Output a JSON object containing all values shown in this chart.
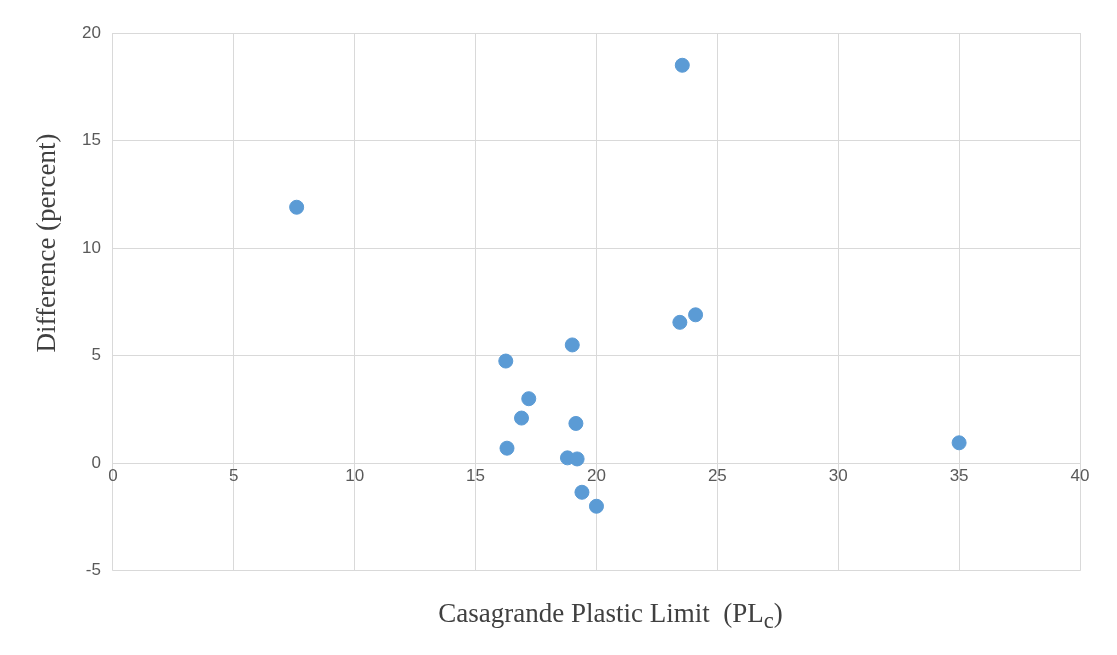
{
  "chart_data": {
    "type": "scatter",
    "xlabel": "Casagrande Plastic Limit  (PL$_{c}$)",
    "ylabel": "Difference (percent)",
    "xlim": [
      0,
      40
    ],
    "xticks": [
      0,
      5,
      10,
      15,
      20,
      25,
      30,
      35,
      40
    ],
    "ylim": [
      -5,
      20
    ],
    "yticks": [
      -5,
      0,
      5,
      10,
      15,
      20
    ],
    "grid": true,
    "marker": "circle",
    "series": [
      {
        "color": "#5b9bd5",
        "x": [
          7.6,
          23.55,
          16.25,
          19.0,
          23.45,
          24.1,
          17.2,
          16.9,
          19.15,
          16.3,
          18.8,
          19.2,
          19.4,
          20.0,
          35.0
        ],
        "values": [
          11.9,
          18.5,
          4.75,
          5.5,
          6.55,
          6.9,
          3.0,
          2.1,
          1.85,
          0.7,
          0.25,
          0.2,
          -1.35,
          -2.0,
          0.95
        ]
      }
    ]
  }
}
